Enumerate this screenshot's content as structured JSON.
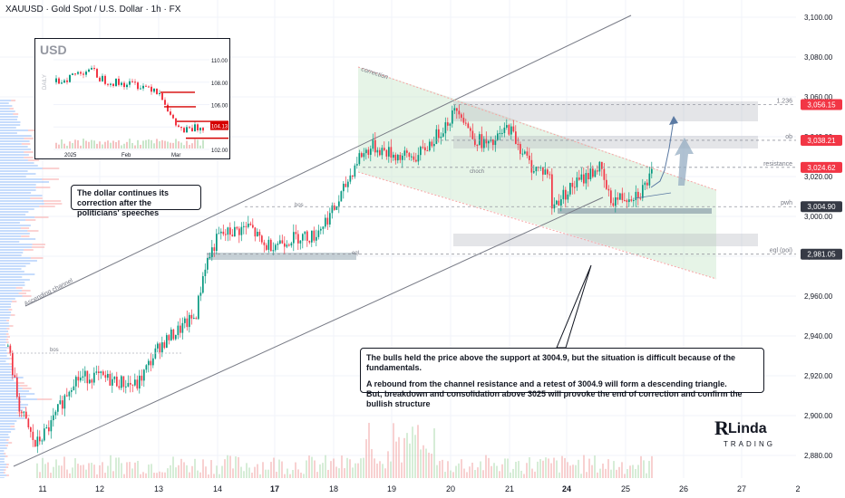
{
  "header": {
    "symbol_title": "XAUUSD · Gold Spot / U.S. Dollar · 1h · FX"
  },
  "colors": {
    "up": "#089981",
    "down": "#f23645",
    "channel": "#787b86",
    "zone_fill": "#c8e6c9",
    "resistance_box": "#b2b5be",
    "support_box": "#90a4ae",
    "label_red": "#f23645",
    "label_dark": "#363a45",
    "arrow": "#6a8caf"
  },
  "price_axis": {
    "ticks": [
      "3,100.00",
      "3,080.00",
      "3,060.00",
      "3,040.00",
      "3,020.00",
      "3,000.00",
      "2,980.00",
      "2,960.00",
      "2,940.00",
      "2,920.00",
      "2,900.00",
      "2,880.00"
    ],
    "badges": [
      {
        "value": "3,056.15",
        "color": "red"
      },
      {
        "value": "3,038.21",
        "color": "red"
      },
      {
        "value": "3,024.62",
        "color": "red"
      },
      {
        "value": "3,004.90",
        "color": "dark"
      },
      {
        "value": "2,981.05",
        "color": "dark"
      }
    ]
  },
  "time_axis": {
    "labels": [
      "11",
      "12",
      "13",
      "14",
      "17",
      "18",
      "19",
      "20",
      "21",
      "24",
      "25",
      "26",
      "27",
      "2"
    ],
    "bold": [
      "17",
      "24"
    ]
  },
  "levels": {
    "fib": "1.236",
    "ob": "ob",
    "resistance": "resistance",
    "pwh": "pwh",
    "eql": "eql (poi)"
  },
  "annotations": {
    "correction": "correction",
    "ascending_channel": "Ascending channel",
    "bos1": "bos",
    "bos2": "bos",
    "choch": "choch",
    "eql_small": "eql"
  },
  "callouts": {
    "dollar": "The dollar continues its correction after the politicians' speeches",
    "main_line1": "The bulls held the price above the support at 3004.9, but the situation is difficult because of the fundamentals.",
    "main_line2": "A rebound from the channel resistance and a retest of 3004.9 will form a descending triangle.",
    "main_line3": "But, breakdown and consolidation above 3025 will provoke the end of correction and confirm the bullish structure"
  },
  "inset": {
    "title": "USD",
    "side_label": "DAILY",
    "y_ticks": [
      "110.00",
      "108.00",
      "106.00",
      "104.00",
      "102.00"
    ],
    "price_badge": "104.13",
    "x_labels": [
      "2025",
      "Feb",
      "Mar"
    ]
  },
  "logo": {
    "name": "RLinda",
    "sub": "TRADING"
  },
  "chart_data": [
    {
      "type": "candlestick",
      "title": "XAUUSD · Gold Spot / U.S. Dollar · 1h · FX",
      "x_labels": [
        "11",
        "12",
        "13",
        "14",
        "17",
        "18",
        "19",
        "20",
        "21",
        "24",
        "25",
        "26",
        "27"
      ],
      "ylim": [
        2870,
        3108
      ],
      "close_path_by_day": [
        {
          "day": "11",
          "close": 2890
        },
        {
          "day": "12",
          "close": 2918
        },
        {
          "day": "13",
          "close": 2935
        },
        {
          "day": "14",
          "close": 2985
        },
        {
          "day": "17",
          "close": 2995
        },
        {
          "day": "18",
          "close": 3018
        },
        {
          "day": "19",
          "close": 3035
        },
        {
          "day": "20",
          "close": 3048
        },
        {
          "day": "21",
          "close": 3028
        },
        {
          "day": "24",
          "close": 3020
        },
        {
          "day": "25",
          "close": 3018
        }
      ],
      "levels": [
        {
          "name": "1.236",
          "value": 3056.15
        },
        {
          "name": "ob",
          "value": 3038.21
        },
        {
          "name": "resistance",
          "value": 3024.62
        },
        {
          "name": "pwh",
          "value": 3004.9
        },
        {
          "name": "eql (poi)",
          "value": 2981.05
        }
      ]
    },
    {
      "type": "candlestick",
      "title": "USD",
      "x_labels": [
        "2025",
        "Feb",
        "Mar"
      ],
      "ylim": [
        101.5,
        110.5
      ],
      "last_value": 104.13
    }
  ]
}
